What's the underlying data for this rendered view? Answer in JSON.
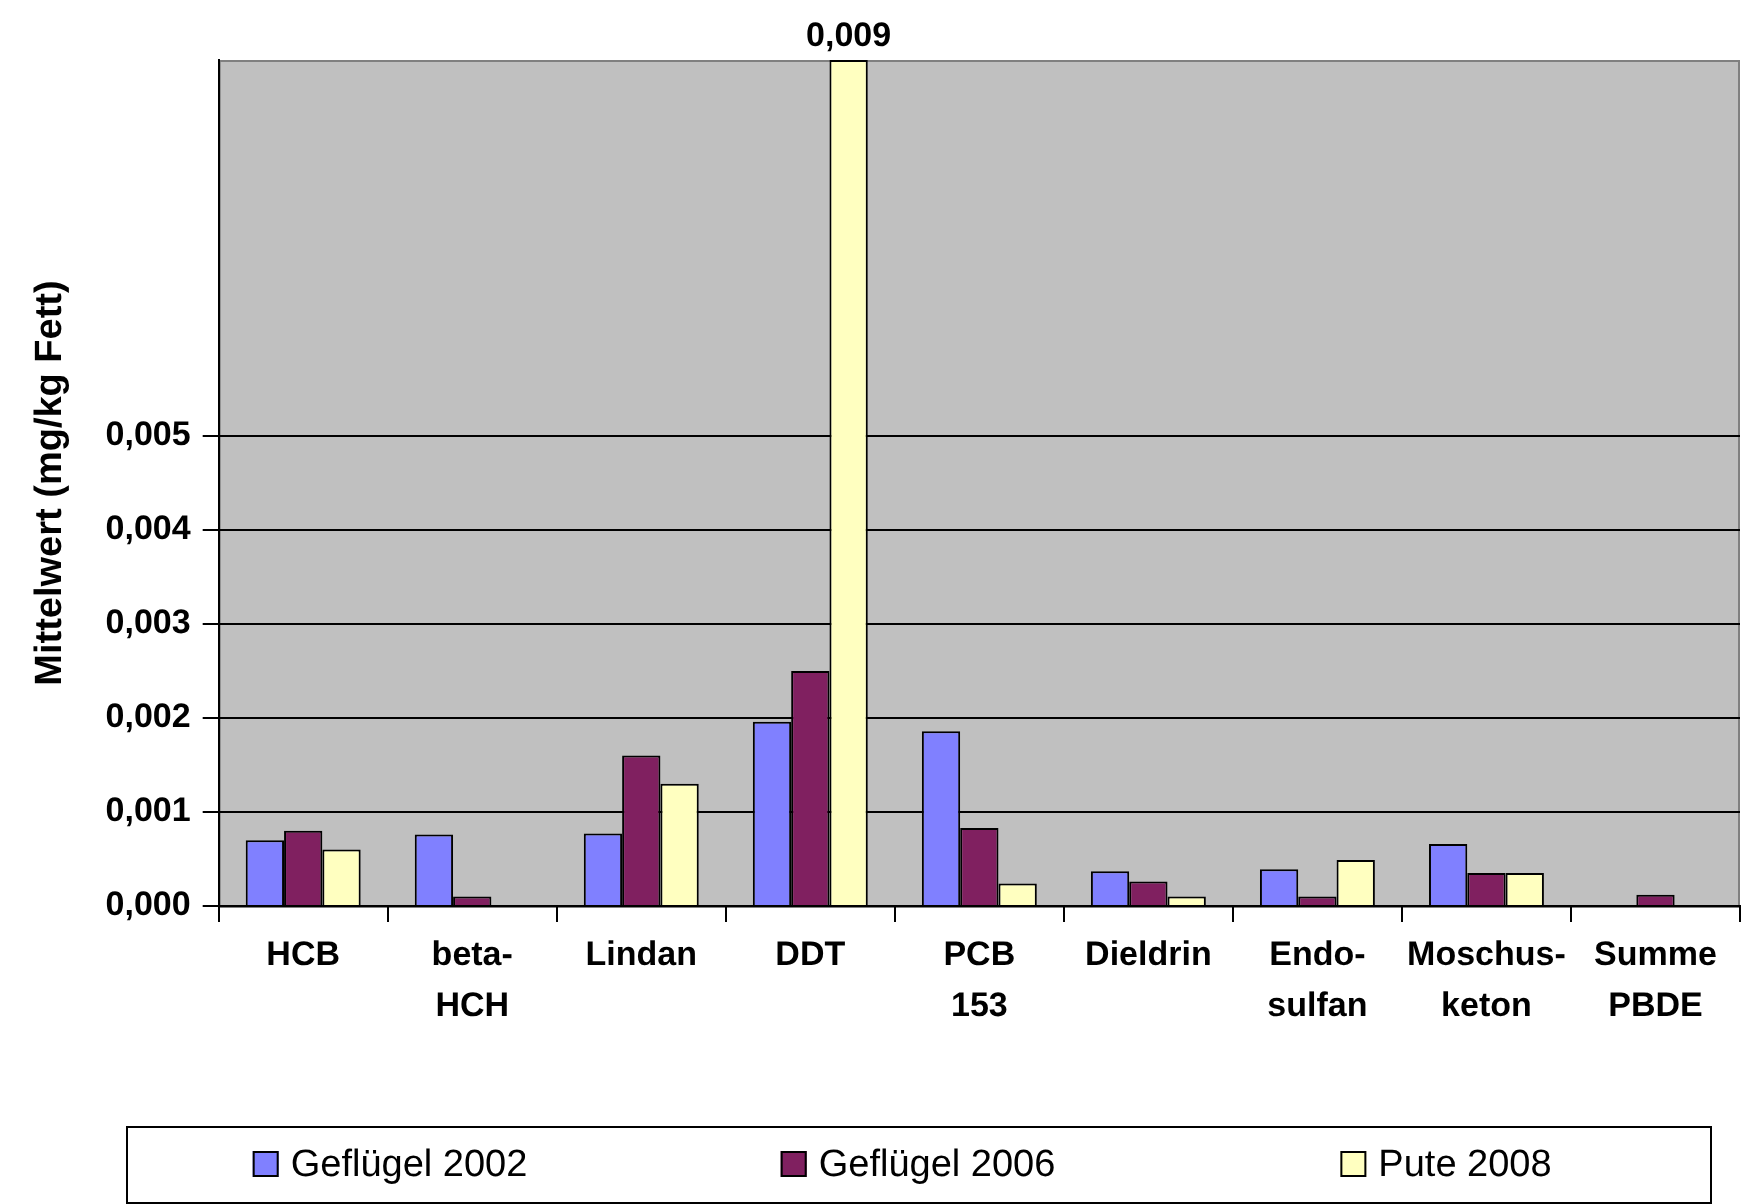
{
  "chart_data": {
    "type": "bar",
    "ylabel": "Mittelwert (mg/kg Fett)",
    "categories": [
      "HCB",
      "beta-HCH",
      "Lindan",
      "DDT",
      "PCB 153",
      "Dieldrin",
      "Endo-sulfan",
      "Moschus-keton",
      "Summe PBDE"
    ],
    "series": [
      {
        "name": "Geflügel 2002",
        "color": "#8080ff",
        "values": [
          0.0007,
          0.00076,
          0.00077,
          0.00196,
          0.00186,
          0.00037,
          0.00039,
          0.00066,
          0
        ]
      },
      {
        "name": "Geflügel 2006",
        "color": "#802060",
        "values": [
          0.0008,
          0.0001,
          0.0016,
          0.0025,
          0.00083,
          0.00026,
          0.0001,
          0.00035,
          0.00012
        ]
      },
      {
        "name": "Pute 2008",
        "color": "#ffffc0",
        "values": [
          0.0006,
          0,
          0.0013,
          0.009,
          0.00024,
          0.0001,
          0.00049,
          0.00035,
          0
        ],
        "value_labels": [
          null,
          null,
          null,
          "0,009",
          null,
          null,
          null,
          null,
          null
        ]
      }
    ],
    "ylim": [
      0,
      0.009
    ],
    "yticks": [
      {
        "value": 0,
        "label": "0,000"
      },
      {
        "value": 0.001,
        "label": "0,001"
      },
      {
        "value": 0.002,
        "label": "0,002"
      },
      {
        "value": 0.003,
        "label": "0,003"
      },
      {
        "value": 0.004,
        "label": "0,004"
      },
      {
        "value": 0.005,
        "label": "0,005"
      }
    ],
    "grid": "y",
    "legend": "bottom"
  }
}
